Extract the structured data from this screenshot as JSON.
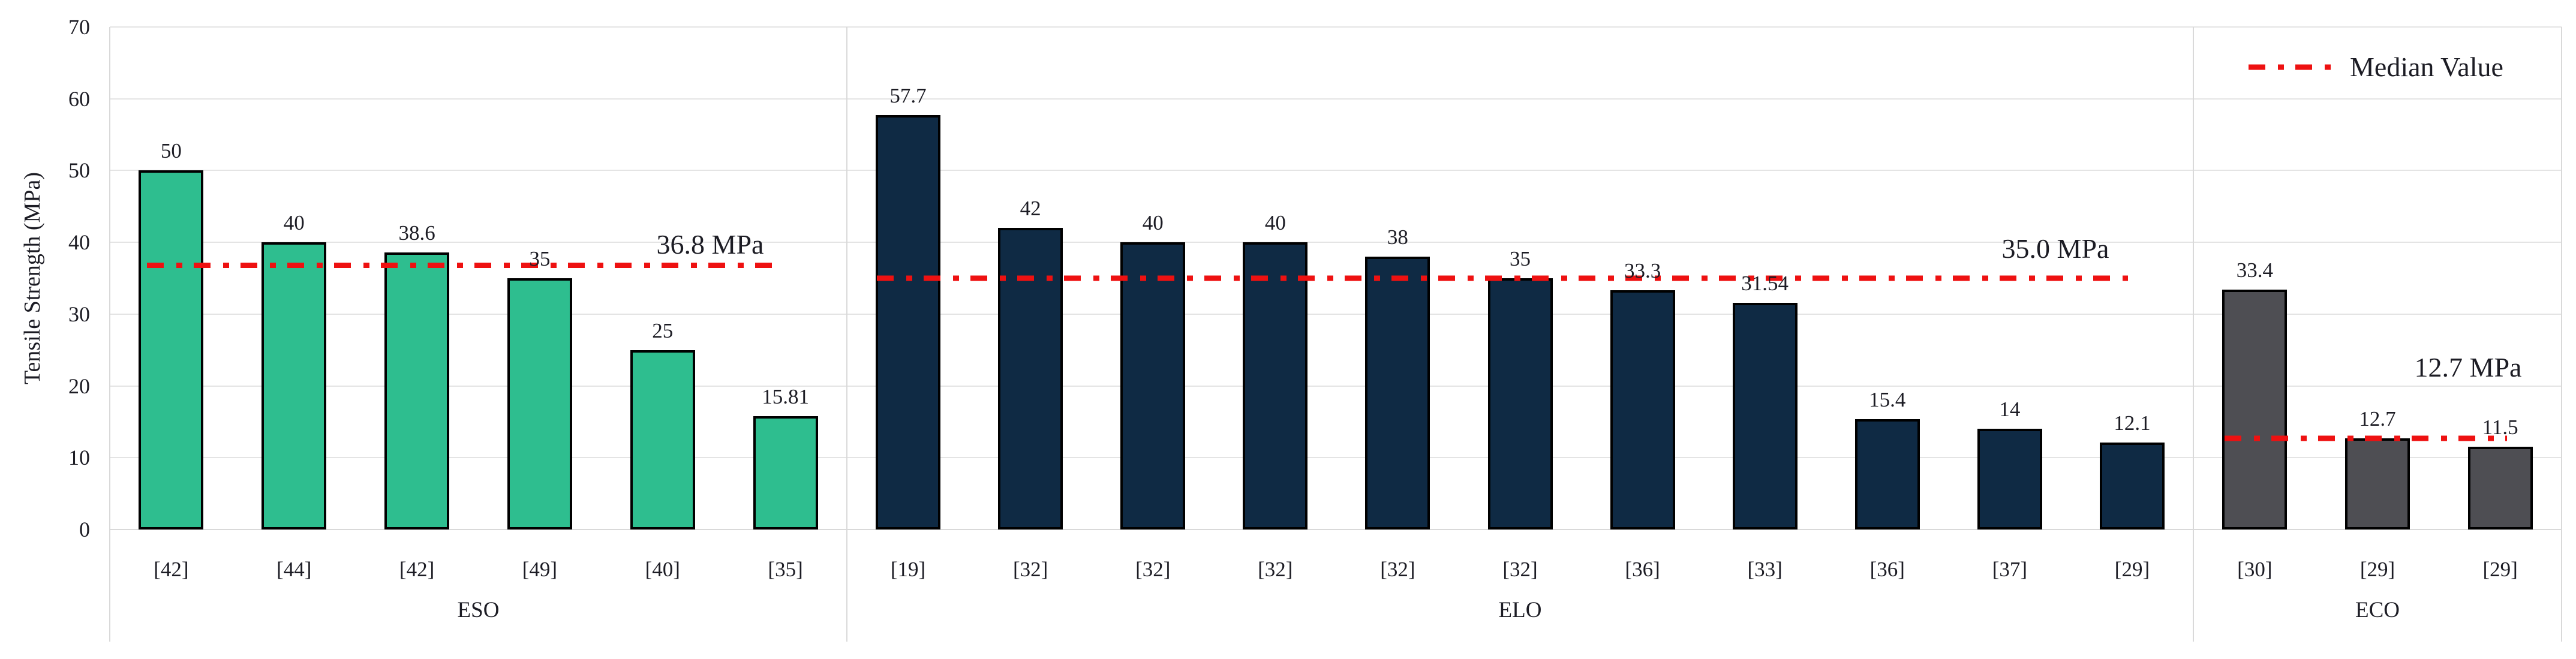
{
  "chart_data": {
    "type": "bar",
    "title": "",
    "ylabel": "Tensile Strength (MPa)",
    "xlabel": "",
    "ylim": [
      0,
      70
    ],
    "yticks": [
      0,
      10,
      20,
      30,
      40,
      50,
      60,
      70
    ],
    "grid": true,
    "legend": {
      "label": "Median Value",
      "position": "top-right"
    },
    "median_line_color": "#ee1111",
    "grid_color": "#e4e4e4",
    "text_color": "#1c1c24",
    "groups": [
      {
        "name": "ESO",
        "color": "#2ebe8f",
        "median": 36.8,
        "median_label": "36.8 MPa",
        "bars": [
          {
            "value": 50,
            "label": "50",
            "ref": "[42]"
          },
          {
            "value": 40,
            "label": "40",
            "ref": "[44]"
          },
          {
            "value": 38.6,
            "label": "38.6",
            "ref": "[42]"
          },
          {
            "value": 35,
            "label": "35",
            "ref": "[49]"
          },
          {
            "value": 25,
            "label": "25",
            "ref": "[40]"
          },
          {
            "value": 15.81,
            "label": "15.81",
            "ref": "[35]"
          }
        ]
      },
      {
        "name": "ELO",
        "color": "#0f2a44",
        "median": 35.0,
        "median_label": "35.0 MPa",
        "bars": [
          {
            "value": 57.7,
            "label": "57.7",
            "ref": "[19]"
          },
          {
            "value": 42,
            "label": "42",
            "ref": "[32]"
          },
          {
            "value": 40,
            "label": "40",
            "ref": "[32]"
          },
          {
            "value": 40,
            "label": "40",
            "ref": "[32]"
          },
          {
            "value": 38,
            "label": "38",
            "ref": "[32]"
          },
          {
            "value": 35,
            "label": "35",
            "ref": "[32]"
          },
          {
            "value": 33.3,
            "label": "33.3",
            "ref": "[36]"
          },
          {
            "value": 31.54,
            "label": "31.54",
            "ref": "[33]"
          },
          {
            "value": 15.4,
            "label": "15.4",
            "ref": "[36]"
          },
          {
            "value": 14,
            "label": "14",
            "ref": "[37]"
          },
          {
            "value": 12.1,
            "label": "12.1",
            "ref": "[29]"
          }
        ]
      },
      {
        "name": "ECO",
        "color": "#4e4e53",
        "median": 12.7,
        "median_label": "12.7 MPa",
        "bars": [
          {
            "value": 33.4,
            "label": "33.4",
            "ref": "[30]"
          },
          {
            "value": 12.7,
            "label": "12.7",
            "ref": "[29]"
          },
          {
            "value": 11.5,
            "label": "11.5",
            "ref": "[29]"
          }
        ]
      }
    ]
  }
}
